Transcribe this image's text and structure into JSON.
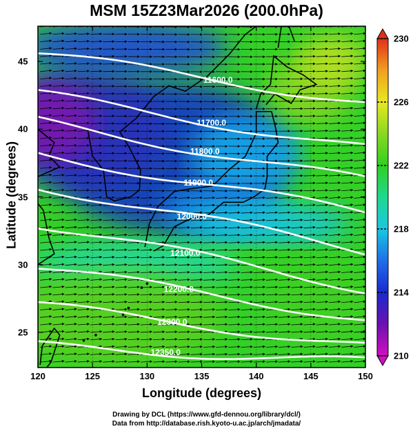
{
  "title": "MSM 15Z23Mar2026 (200.0hPa)",
  "xlabel": "Longitude (degrees)",
  "ylabel": "Latitude  (degrees)",
  "credits": {
    "line1": "Drawing by DCL (https://www.gfd-dennou.org/library/dcl/)",
    "line2": "Data from http://database.rish.kyoto-u.ac.jp/arch/jmadata/"
  },
  "map": {
    "lon_range": [
      120,
      150
    ],
    "lat_range": [
      22.4,
      47.6
    ],
    "lon_ticks": [
      "120",
      "125",
      "130",
      "135",
      "140",
      "145",
      "150"
    ],
    "lat_ticks": [
      "25",
      "30",
      "35",
      "40",
      "45"
    ],
    "shading_variable": "temperature (K)",
    "colorbar": {
      "range": [
        210,
        230
      ],
      "ticks": [
        "210",
        "214",
        "218",
        "222",
        "226",
        "230"
      ],
      "colors": [
        "#d010c0",
        "#6a10b0",
        "#1a2ad0",
        "#1f6fe8",
        "#18c8e0",
        "#20d890",
        "#30d020",
        "#8ad820",
        "#e8e820",
        "#f0a020",
        "#e03018"
      ]
    },
    "contours": [
      {
        "label": "11600.0",
        "lat_at_lon120": 45.6,
        "lat_at_lon150": 42.0
      },
      {
        "label": "11700.0",
        "lat_at_lon120": 42.6,
        "lat_at_lon150": 38.6
      },
      {
        "label": "11800.0",
        "lat_at_lon120": 40.6,
        "lat_at_lon150": 36.2
      },
      {
        "label": "11900.0",
        "lat_at_lon120": 38.2,
        "lat_at_lon150": 33.8
      },
      {
        "label": "12000.0",
        "lat_at_lon120": 35.8,
        "lat_at_lon150": 31.0
      },
      {
        "label": "12100.0",
        "lat_at_lon120": 33.0,
        "lat_at_lon150": 28.2
      },
      {
        "label": "12200.0",
        "lat_at_lon120": 29.8,
        "lat_at_lon150": 26.0
      },
      {
        "label": "12300.0",
        "lat_at_lon120": 27.0,
        "lat_at_lon150": 24.0
      },
      {
        "label": "12350.0",
        "lat_at_lon120": 24.0,
        "lat_at_lon150": 22.8
      }
    ],
    "land_color": "#000000",
    "contour_color": "#ffffff",
    "vector_color": "#000000"
  }
}
